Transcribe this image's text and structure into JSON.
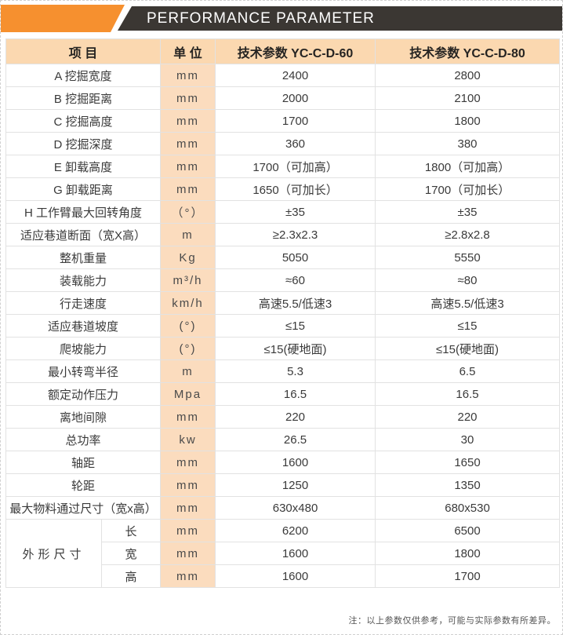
{
  "banner": {
    "title": "PERFORMANCE PARAMETER"
  },
  "colors": {
    "orange": "#F6902F",
    "dark": "#3B3733",
    "header_bg": "#FBD8B0",
    "unit_bg": "#FBDCBE"
  },
  "table": {
    "headers": {
      "item": "项  目",
      "unit": "单 位",
      "model1": "技术参数 YC-C-D-60",
      "model2": "技术参数 YC-C-D-80"
    },
    "rows": [
      {
        "item": "A 挖掘宽度",
        "unit": "mm",
        "v1": "2400",
        "v2": "2800"
      },
      {
        "item": "B 挖掘距离",
        "unit": "mm",
        "v1": "2000",
        "v2": "2100"
      },
      {
        "item": "C 挖掘高度",
        "unit": "mm",
        "v1": "1700",
        "v2": "1800"
      },
      {
        "item": "D 挖掘深度",
        "unit": "mm",
        "v1": "360",
        "v2": "380"
      },
      {
        "item": "E 卸载高度",
        "unit": "mm",
        "v1": "1700（可加高）",
        "v2": "1800（可加高）"
      },
      {
        "item": "G 卸载距离",
        "unit": "mm",
        "v1": "1650（可加长）",
        "v2": "1700（可加长）"
      },
      {
        "item": "H 工作臂最大回转角度",
        "unit": "（°）",
        "v1": "±35",
        "v2": "±35"
      },
      {
        "item": "适应巷道断面（宽X高）",
        "unit": "m",
        "v1": "≥2.3x2.3",
        "v2": "≥2.8x2.8"
      },
      {
        "item": "整机重量",
        "unit": "Kg",
        "v1": "5050",
        "v2": "5550"
      },
      {
        "item": "装载能力",
        "unit": "m³/h",
        "v1": "≈60",
        "v2": "≈80"
      },
      {
        "item": "行走速度",
        "unit": "km/h",
        "v1": "高速5.5/低速3",
        "v2": "高速5.5/低速3"
      },
      {
        "item": "适应巷道坡度",
        "unit": "(°)",
        "v1": "≤15",
        "v2": "≤15"
      },
      {
        "item": "爬坡能力",
        "unit": "(°)",
        "v1": "≤15(硬地面)",
        "v2": "≤15(硬地面)"
      },
      {
        "item": "最小转弯半径",
        "unit": "m",
        "v1": "5.3",
        "v2": "6.5"
      },
      {
        "item": "额定动作压力",
        "unit": "Mpa",
        "v1": "16.5",
        "v2": "16.5"
      },
      {
        "item": "离地间隙",
        "unit": "mm",
        "v1": "220",
        "v2": "220"
      },
      {
        "item": "总功率",
        "unit": "kw",
        "v1": "26.5",
        "v2": "30"
      },
      {
        "item": "轴距",
        "unit": "mm",
        "v1": "1600",
        "v2": "1650"
      },
      {
        "item": "轮距",
        "unit": "mm",
        "v1": "1250",
        "v2": "1350"
      },
      {
        "item": "最大物料通过尺寸（宽x高）",
        "unit": "mm",
        "v1": "630x480",
        "v2": "680x530"
      }
    ],
    "group": {
      "label": "外形尺寸",
      "rows": [
        {
          "sub": "长",
          "unit": "mm",
          "v1": "6200",
          "v2": "6500"
        },
        {
          "sub": "宽",
          "unit": "mm",
          "v1": "1600",
          "v2": "1800"
        },
        {
          "sub": "高",
          "unit": "mm",
          "v1": "1600",
          "v2": "1700"
        }
      ]
    }
  },
  "footnote": "注：以上参数仅供参考，可能与实际参数有所差异。"
}
